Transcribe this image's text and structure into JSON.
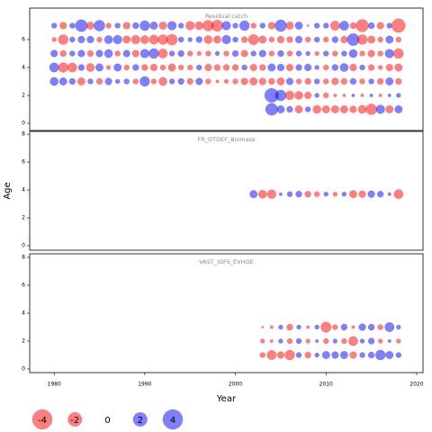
{
  "chart_data": [
    {
      "type": "bubble",
      "title": "Residual catch",
      "x": [
        1980,
        1981,
        1982,
        1983,
        1984,
        1985,
        1986,
        1987,
        1988,
        1989,
        1990,
        1991,
        1992,
        1993,
        1994,
        1995,
        1996,
        1997,
        1998,
        1999,
        2000,
        2001,
        2002,
        2003,
        2004,
        2005,
        2006,
        2007,
        2008,
        2009,
        2010,
        2011,
        2012,
        2013,
        2014,
        2015,
        2016,
        2017,
        2018
      ],
      "y": [
        7,
        6,
        5,
        4,
        3,
        2,
        1
      ],
      "values": [
        [
          0.3,
          -0.5,
          0.3,
          1.5,
          -0.6,
          1.2,
          -0.3,
          0.3,
          -0.5,
          0.4,
          1.0,
          0.6,
          -0.6,
          0.8,
          0.3,
          -0.8,
          -0.7,
          -1.2,
          -1.3,
          0.8,
          0.3,
          1.0,
          -0.3,
          0.3,
          -0.5,
          1.4,
          -0.6,
          0.6,
          -0.05,
          0.3,
          0.3,
          -0.9,
          0.9,
          -0.4,
          -1.6,
          0.4,
          -0.5,
          0.3,
          -1.9
        ],
        [
          -0.2,
          -1.0,
          0.3,
          0.5,
          0.5,
          -0.3,
          0.7,
          0.8,
          -0.6,
          -0.8,
          -0.7,
          -0.9,
          -1.0,
          -1.2,
          0.3,
          0.2,
          0.4,
          -0.7,
          -0.6,
          0.8,
          0.3,
          -0.4,
          -1.1,
          -0.6,
          -0.3,
          -0.5,
          -0.4,
          0.5,
          -0.3,
          0.3,
          -0.3,
          0.4,
          -0.5,
          1.5,
          -1.0,
          -0.6,
          -0.3,
          0.6,
          -0.3
        ],
        [
          0.5,
          -0.4,
          0.3,
          0.5,
          -0.4,
          0.5,
          0.7,
          -0.3,
          0.5,
          -0.5,
          0.8,
          1.0,
          -0.9,
          0.3,
          0.4,
          -0.3,
          -0.2,
          -0.3,
          0.2,
          -0.3,
          0.4,
          -0.5,
          0.3,
          0.5,
          -0.3,
          0.4,
          -0.3,
          0.3,
          0.2,
          -0.2,
          0.3,
          -0.3,
          0.3,
          0.7,
          -0.3,
          -0.5,
          -0.3,
          0.8,
          -1.0
        ],
        [
          0.9,
          -1.0,
          -0.9,
          0.4,
          -0.7,
          0.6,
          -0.2,
          0.6,
          -0.3,
          0.4,
          -0.4,
          -0.5,
          -0.3,
          -0.6,
          -0.3,
          -0.3,
          0.3,
          -0.5,
          -0.4,
          -0.4,
          -0.4,
          0.3,
          -0.5,
          -0.4,
          0.6,
          0.5,
          -0.5,
          0.4,
          0.5,
          0.2,
          -0.3,
          0.4,
          0.7,
          -0.5,
          0.3,
          -0.4,
          -0.2,
          -0.5,
          -0.6
        ],
        [
          0.7,
          0.6,
          0.4,
          -0.6,
          0.3,
          -0.4,
          0.5,
          0.2,
          0.3,
          -0.3,
          1.0,
          -0.3,
          -0.7,
          0.3,
          0.4,
          -0.4,
          0.5,
          -0.3,
          -0.1,
          -0.2,
          -0.3,
          -0.5,
          -0.6,
          -0.5,
          -0.4,
          -0.6,
          0.5,
          -0.3,
          -0.4,
          0.3,
          -0.3,
          -0.5,
          -0.4,
          0.4,
          -0.3,
          0.3,
          -0.4,
          0.6,
          -0.4
        ],
        [
          null,
          null,
          null,
          null,
          null,
          null,
          null,
          null,
          null,
          null,
          null,
          null,
          null,
          null,
          null,
          null,
          null,
          null,
          null,
          null,
          null,
          null,
          null,
          null,
          2.0,
          1.2,
          -0.8,
          -0.7,
          -0.5,
          0.2,
          -0.3,
          -0.1,
          -0.1,
          0.1,
          -0.1,
          0.1,
          -0.1,
          0.1,
          0.2
        ],
        [
          null,
          null,
          null,
          null,
          null,
          null,
          null,
          null,
          null,
          null,
          null,
          null,
          null,
          null,
          null,
          null,
          null,
          null,
          null,
          null,
          null,
          null,
          null,
          null,
          1.5,
          0.6,
          0.4,
          -0.6,
          0.3,
          -0.7,
          -0.6,
          -0.6,
          -0.6,
          -0.5,
          -0.7,
          -1.2,
          0.8,
          -0.6,
          0.6
        ]
      ],
      "xlim": [
        1977.3,
        2020.7
      ],
      "ylim": [
        -0.52,
        8.26
      ],
      "yticks": [
        0,
        2,
        4,
        6
      ],
      "positive_color": "#0000ff",
      "negative_color": "#ff0000",
      "opacity": 0.5
    },
    {
      "type": "bubble",
      "title": "FR_OTDEF_Biomass",
      "y_label": "Age",
      "x": [
        2002,
        2003,
        2004,
        2005,
        2006,
        2007,
        2008,
        2009,
        2010,
        2011,
        2012,
        2013,
        2014,
        2015,
        2016,
        2017,
        2018
      ],
      "y": [
        3.7
      ],
      "values": [
        [
          0.6,
          -0.7,
          -0.8,
          0.1,
          0.3,
          0.4,
          -0.4,
          -0.3,
          0.2,
          -0.2,
          0.2,
          -0.6,
          -0.5,
          0.5,
          0.4,
          0.1,
          -0.9
        ]
      ],
      "xlim": [
        1977.3,
        2020.7
      ],
      "ylim": [
        -0.32,
        8.2
      ],
      "yticks": [
        0,
        2,
        4,
        6,
        8
      ],
      "positive_color": "#0000ff",
      "negative_color": "#ff0000",
      "opacity": 0.5
    },
    {
      "type": "bubble",
      "title": "VAST_IGFS_EVHOE",
      "x_label": "Year",
      "x": [
        2003,
        2004,
        2005,
        2006,
        2007,
        2008,
        2009,
        2010,
        2011,
        2012,
        2013,
        2014,
        2015,
        2016,
        2017,
        2018
      ],
      "y": [
        3,
        2,
        1
      ],
      "values": [
        [
          -0.05,
          -0.1,
          0.2,
          -0.4,
          0.2,
          -0.1,
          0.2,
          -1.1,
          -0.3,
          0.4,
          -0.1,
          0.5,
          0.4,
          -0.3,
          0.9,
          0.2
        ],
        [
          -0.2,
          -0.1,
          0.2,
          -0.3,
          0.3,
          -0.2,
          0.1,
          -0.3,
          0.2,
          -0.3,
          -0.9,
          0.2,
          0.4,
          -0.2,
          0.1,
          -0.2
        ],
        [
          -0.3,
          -0.9,
          -0.5,
          -1.0,
          0.3,
          -0.4,
          0.2,
          0.6,
          0.5,
          0.6,
          -0.5,
          0.3,
          0.4,
          1.0,
          0.6,
          0.3
        ]
      ],
      "xlim": [
        1977.3,
        2020.7
      ],
      "xticks": [
        1980,
        1990,
        2000,
        2010,
        2020
      ],
      "ylim": [
        -0.26,
        8.26
      ],
      "yticks": [
        0,
        2,
        4,
        6,
        8
      ],
      "positive_color": "#0000ff",
      "negative_color": "#ff0000",
      "opacity": 0.5,
      "size_legend": [
        -4,
        -2,
        0,
        2,
        4
      ]
    }
  ]
}
